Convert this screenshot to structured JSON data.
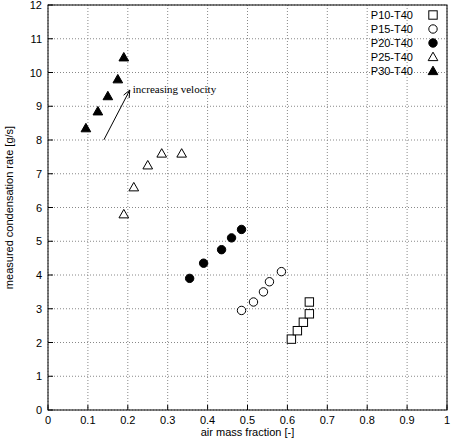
{
  "chart_data": {
    "type": "scatter",
    "x_label": "air mass fraction  [-]",
    "y_label": "measured condensation rate [g/s]",
    "annotation": "increasing velocity",
    "xlim": [
      0,
      1
    ],
    "ylim": [
      0,
      12
    ],
    "xticks": [
      0,
      0.1,
      0.2,
      0.3,
      0.4,
      0.5,
      0.6,
      0.7,
      0.8,
      0.9,
      1
    ],
    "yticks": [
      0,
      1,
      2,
      3,
      4,
      5,
      6,
      7,
      8,
      9,
      10,
      11,
      12
    ],
    "grid": true,
    "legend": "top-right",
    "series": [
      {
        "name": "P10-T40",
        "color": "#000000",
        "marker": "square-open",
        "x": [
          0.61,
          0.625,
          0.64,
          0.655,
          0.655
        ],
        "values": [
          2.1,
          2.35,
          2.6,
          2.85,
          3.2
        ]
      },
      {
        "name": "P15-T40",
        "color": "#000000",
        "marker": "circle-open",
        "x": [
          0.485,
          0.515,
          0.54,
          0.555,
          0.585
        ],
        "values": [
          2.95,
          3.2,
          3.5,
          3.8,
          4.1
        ]
      },
      {
        "name": "P20-T40",
        "color": "#000000",
        "marker": "circle",
        "x": [
          0.355,
          0.39,
          0.435,
          0.46,
          0.485
        ],
        "values": [
          3.9,
          4.35,
          4.75,
          5.1,
          5.35
        ]
      },
      {
        "name": "P25-T40",
        "color": "#000000",
        "marker": "triangle-open",
        "x": [
          0.19,
          0.215,
          0.25,
          0.285,
          0.335
        ],
        "values": [
          5.8,
          6.6,
          7.25,
          7.6,
          7.6
        ]
      },
      {
        "name": "P30-T40",
        "color": "#000000",
        "marker": "triangle",
        "x": [
          0.095,
          0.125,
          0.15,
          0.175,
          0.19
        ],
        "values": [
          8.35,
          8.85,
          9.3,
          9.8,
          10.45
        ]
      }
    ]
  }
}
